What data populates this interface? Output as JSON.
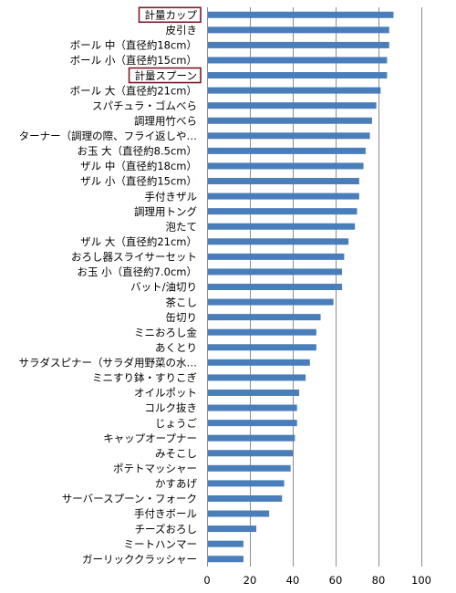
{
  "chart_data": {
    "type": "bar",
    "orientation": "horizontal",
    "categories": [
      "計量カップ",
      "皮引き",
      "ボール 中（直径約18cm）",
      "ボール 小（直径約15cm）",
      "計量スプーン",
      "ボール 大（直径約21cm）",
      "スパチュラ・ゴムべら",
      "調理用竹べら",
      "ターナー（調理の際、フライ返しや…",
      "お玉 大（直径約8.5cm）",
      "ザル 中（直径約18cm）",
      "ザル 小（直径約15cm）",
      "手付きザル",
      "調理用トング",
      "泡たて",
      "ザル 大（直径約21cm）",
      "おろし器スライサーセット",
      "お玉 小（直径約7.0cm）",
      "バット/油切り",
      "茶こし",
      "缶切り",
      "ミニおろし金",
      "あくとり",
      "サラダスピナー（サラダ用野菜の水…",
      "ミニすり鉢・すりこぎ",
      "オイルポット",
      "コルク抜き",
      "じょうご",
      "キャップオープナー",
      "みそこし",
      "ポテトマッシャー",
      "かすあげ",
      "サーバースプーン・フォーク",
      "手付きボール",
      "チーズおろし",
      "ミートハンマー",
      "ガーリッククラッシャー"
    ],
    "values": [
      87,
      85,
      85,
      84,
      84,
      81,
      79,
      77,
      76,
      74,
      73,
      71,
      71,
      70,
      69,
      66,
      64,
      63,
      63,
      59,
      53,
      51,
      51,
      48,
      46,
      43,
      42,
      42,
      41,
      40,
      39,
      36,
      35,
      29,
      23,
      17,
      17
    ],
    "highlighted": [
      "計量カップ",
      "計量スプーン"
    ],
    "highlight_color": "#7a1a2a",
    "bar_color": "#4a7ebb",
    "grid_color": "#8c8c8c",
    "xlim": [
      0,
      100
    ],
    "xticks": [
      "0",
      "20",
      "40",
      "60",
      "80",
      "100"
    ],
    "grid": true,
    "title": "",
    "xlabel": "",
    "ylabel": ""
  }
}
